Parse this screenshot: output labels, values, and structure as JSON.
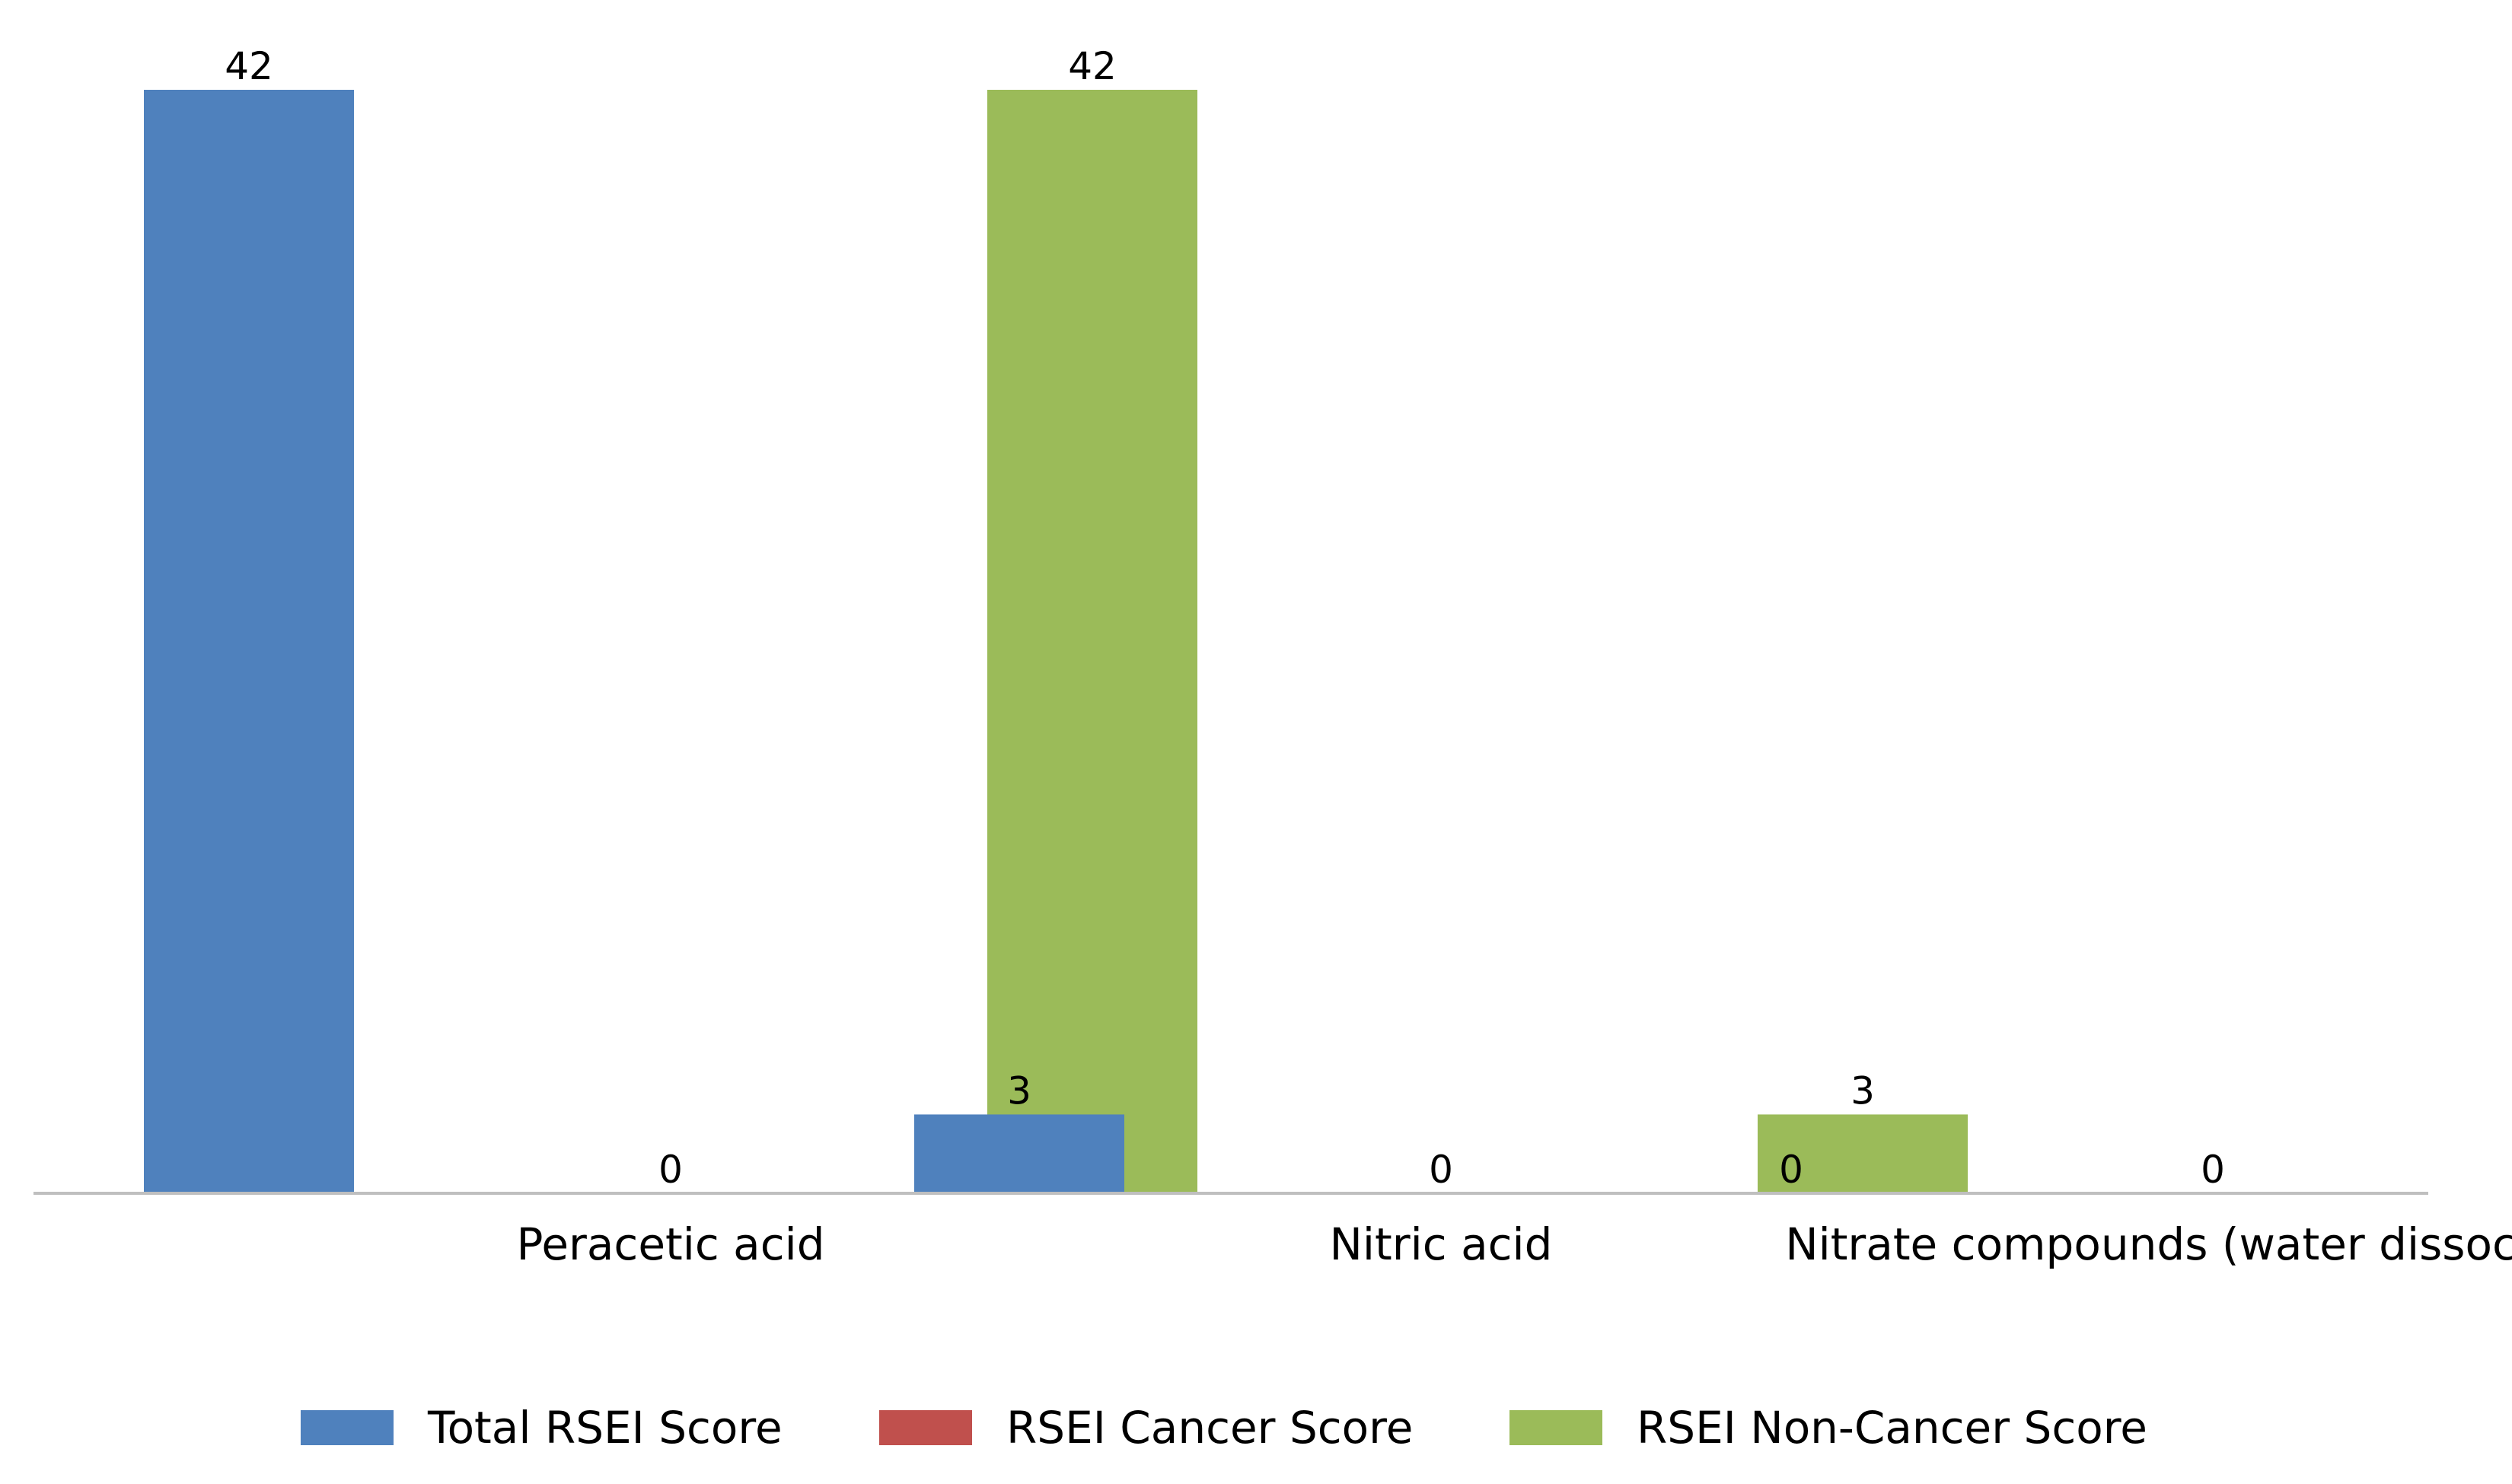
{
  "chart_data": {
    "type": "bar",
    "categories": [
      "Peracetic acid",
      "Nitric acid",
      "Nitrate compounds (water dissociable)"
    ],
    "series": [
      {
        "name": "Total RSEI Score",
        "values": [
          42,
          3,
          0
        ],
        "color": "#4F81BD"
      },
      {
        "name": "RSEI Cancer Score",
        "values": [
          0,
          0,
          0
        ],
        "color": "#C0504D"
      },
      {
        "name": "RSEI Non-Cancer Score",
        "values": [
          42,
          3,
          0
        ],
        "color": "#9BBB59"
      }
    ],
    "data_labels": [
      [
        "42",
        "3",
        "0"
      ],
      [
        "0",
        "0",
        "0"
      ],
      [
        "42",
        "3",
        "0"
      ]
    ],
    "ylim": [
      0,
      42
    ],
    "grid": false,
    "legend_position": "bottom",
    "axis_color": "#BFBFBF"
  }
}
